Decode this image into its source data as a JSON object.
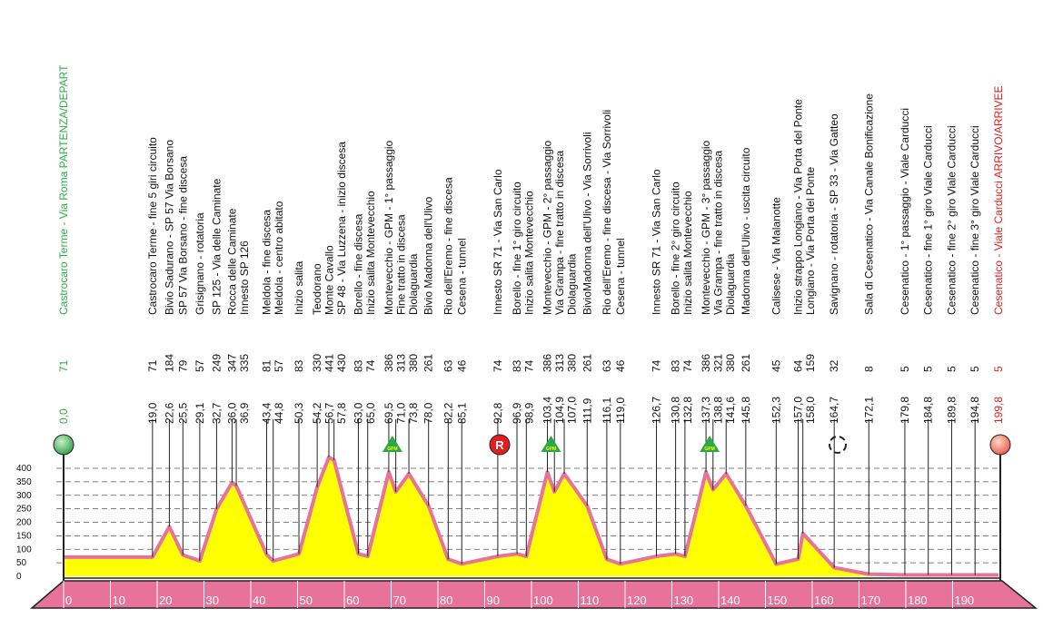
{
  "chart_data": {
    "type": "area",
    "color": "#e8739a",
    "fill": "#ffff00",
    "gpm_label": "GPM",
    "feed_label": "R",
    "xlim": [
      0,
      200
    ],
    "xticks": [
      0,
      10,
      20,
      30,
      40,
      50,
      60,
      70,
      80,
      90,
      100,
      110,
      120,
      130,
      140,
      150,
      160,
      170,
      180,
      190
    ],
    "ylim": [
      0,
      400
    ],
    "yticks": [
      0,
      50,
      100,
      150,
      200,
      250,
      300,
      350,
      400
    ],
    "grid": true,
    "x": [
      0,
      19,
      22.6,
      25.5,
      29.1,
      32.7,
      36,
      36.9,
      43.4,
      44.8,
      50.3,
      54.2,
      56.7,
      57.8,
      63,
      65,
      69.5,
      71,
      73.8,
      78,
      82.2,
      85.1,
      92.8,
      96.9,
      98.9,
      103.4,
      104.9,
      107,
      111.9,
      116.1,
      119,
      126.7,
      130.8,
      132.8,
      137.3,
      138.8,
      141.6,
      145.8,
      152.3,
      157,
      158,
      164.7,
      172.1,
      179.8,
      184.8,
      189.8,
      194.8,
      199.8
    ],
    "x_labels": [
      "0,0",
      "19,0",
      "22,6",
      "25,5",
      "29,1",
      "32,7",
      "36,0",
      "36,9",
      "43,4",
      "44,8",
      "50,3",
      "54,2",
      "56,7",
      "57,8",
      "63,0",
      "65,0",
      "69,5",
      "71,0",
      "73,8",
      "78,0",
      "82,2",
      "85,1",
      "92,8",
      "96,9",
      "98,9",
      "103,4",
      "104,9",
      "107,0",
      "111,9",
      "116,1",
      "119,0",
      "126,7",
      "130,8",
      "132,8",
      "137,3",
      "138,8",
      "141,6",
      "145,8",
      "152,3",
      "157,0",
      "158,0",
      "164,7",
      "172,1",
      "179,8",
      "184,8",
      "189,8",
      "194,8",
      "199,8"
    ],
    "values": [
      71,
      71,
      184,
      79,
      57,
      249,
      347,
      335,
      81,
      57,
      83,
      330,
      441,
      430,
      83,
      74,
      386,
      313,
      380,
      261,
      63,
      46,
      74,
      83,
      74,
      386,
      313,
      380,
      261,
      63,
      46,
      74,
      83,
      74,
      386,
      321,
      380,
      261,
      45,
      64,
      159,
      32,
      8,
      5,
      5,
      5,
      5,
      5
    ],
    "names": [
      "Castrocaro Terme - Via Roma PARTENZA/DEPART",
      "Castrocaro Terme - fine 5 giri circuito",
      "Bivio Sadurano - SP 57 Via Borsano",
      "SP 57 Via Borsano - fine discesa",
      "Grisignano - rotatoria",
      "SP 125 - Via delle Caminate",
      "Rocca delle Caminate",
      "Innesto SP 126",
      "Meldola - fine discesa",
      "Meldola - centro abitato",
      "Inizio salita",
      "Teodorano",
      "Monte Cavallo",
      "SP 48 - Via Luzzena - inizio discesa",
      "Borello - fine discesa",
      "Inizio salita Montevecchio",
      "Montevecchio - GPM - 1° passaggio",
      "Fine tratto in discesa",
      "Diolaguardia",
      "Bivio Madonna dell'Ulivo",
      "Rio dell'Eremo - fine discesa",
      "Cesena - tunnel",
      "Innesto SR 71 - Via San Carlo",
      "Borello - fine 1° giro circuito",
      "Inizio salita Montevecchio",
      "Montevecchio - GPM - 2° passaggio",
      "Via Grampa - fine tratto in discesa",
      "Diolaguardia",
      "BivioMadonna dell'Ulivo - Via Sorrivoli",
      "Rio dell'Eremo - fine discesa - Via Sorrivoli",
      "Cesena - tunnel",
      "Innesto SR 71 - Via San Carlo",
      "Borello - fine 2° giro circuito",
      "Inizio salita Montevecchio",
      "Montevecchio - GPM - 3° passaggio",
      "Via Grampa - fine tratto in discesa",
      "Diolaguardia",
      "Madonna dell'Ulivo - uscita circuito",
      "Calisese - Via Malanotte",
      "Inizio strappo Longiano - Via Porta del Ponte",
      "Longiano - Via Porta del Ponte",
      "Savignano - rotatoria - SP 33 - Via Gatteo",
      "Sala di Cesenatico - Via Canale Bonificazione",
      "Cesenatico - 1° passaggio - Viale Carducci",
      "Cesenatico - fine 1° giro Viale Carducci",
      "Cesenatico - fine 2° giro Viale Carducci",
      "Cesenatico - fine 3° giro Viale Carducci",
      "Cesenatico - Viale Carducci ARRIVO/ARRIVEE"
    ]
  }
}
